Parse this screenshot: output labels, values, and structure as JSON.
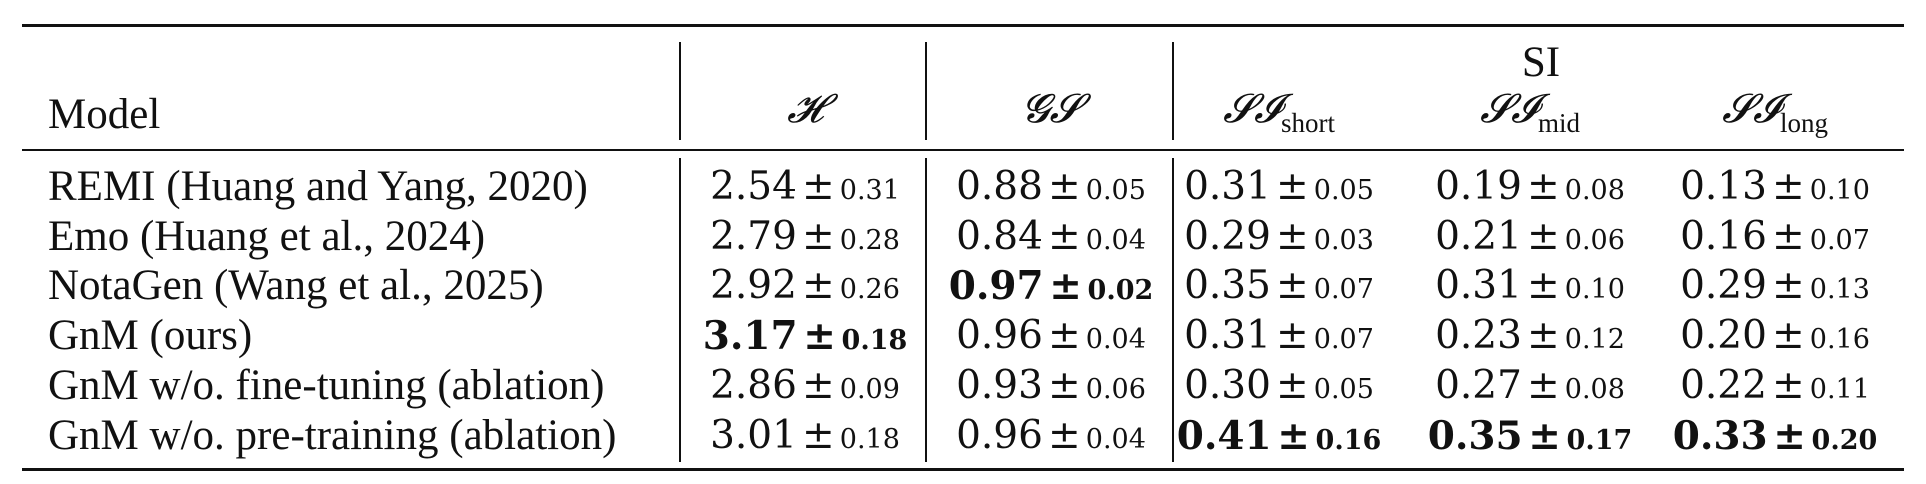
{
  "table": {
    "header": {
      "model": "Model",
      "entropy": "𝓗",
      "gs": "𝓖𝓢",
      "si_group": "SI",
      "si_prefix": "𝓢𝓘",
      "si_short_sub": "short",
      "si_mid_sub": "mid",
      "si_long_sub": "long"
    },
    "pm": "±",
    "rows": [
      {
        "model": "REMI (Huang and Yang, 2020)",
        "cells": [
          {
            "mean": "2.54",
            "sd": "0.31"
          },
          {
            "mean": "0.88",
            "sd": "0.05"
          },
          {
            "mean": "0.31",
            "sd": "0.05"
          },
          {
            "mean": "0.19",
            "sd": "0.08"
          },
          {
            "mean": "0.13",
            "sd": "0.10"
          }
        ]
      },
      {
        "model": "Emo (Huang et al., 2024)",
        "cells": [
          {
            "mean": "2.79",
            "sd": "0.28"
          },
          {
            "mean": "0.84",
            "sd": "0.04"
          },
          {
            "mean": "0.29",
            "sd": "0.03"
          },
          {
            "mean": "0.21",
            "sd": "0.06"
          },
          {
            "mean": "0.16",
            "sd": "0.07"
          }
        ]
      },
      {
        "model": "NotaGen (Wang et al., 2025)",
        "cells": [
          {
            "mean": "2.92",
            "sd": "0.26"
          },
          {
            "mean": "0.97",
            "sd": "0.02",
            "bold": true
          },
          {
            "mean": "0.35",
            "sd": "0.07"
          },
          {
            "mean": "0.31",
            "sd": "0.10"
          },
          {
            "mean": "0.29",
            "sd": "0.13"
          }
        ]
      },
      {
        "model": "GnM (ours)",
        "cells": [
          {
            "mean": "3.17",
            "sd": "0.18",
            "bold": true
          },
          {
            "mean": "0.96",
            "sd": "0.04"
          },
          {
            "mean": "0.31",
            "sd": "0.07"
          },
          {
            "mean": "0.23",
            "sd": "0.12"
          },
          {
            "mean": "0.20",
            "sd": "0.16"
          }
        ]
      },
      {
        "model": "GnM w/o. fine-tuning (ablation)",
        "cells": [
          {
            "mean": "2.86",
            "sd": "0.09"
          },
          {
            "mean": "0.93",
            "sd": "0.06"
          },
          {
            "mean": "0.30",
            "sd": "0.05"
          },
          {
            "mean": "0.27",
            "sd": "0.08"
          },
          {
            "mean": "0.22",
            "sd": "0.11"
          }
        ]
      },
      {
        "model": "GnM w/o. pre-training (ablation)",
        "cells": [
          {
            "mean": "3.01",
            "sd": "0.18"
          },
          {
            "mean": "0.96",
            "sd": "0.04"
          },
          {
            "mean": "0.41",
            "sd": "0.16",
            "bold": true
          },
          {
            "mean": "0.35",
            "sd": "0.17",
            "bold": true
          },
          {
            "mean": "0.33",
            "sd": "0.20",
            "bold": true
          }
        ]
      }
    ]
  }
}
